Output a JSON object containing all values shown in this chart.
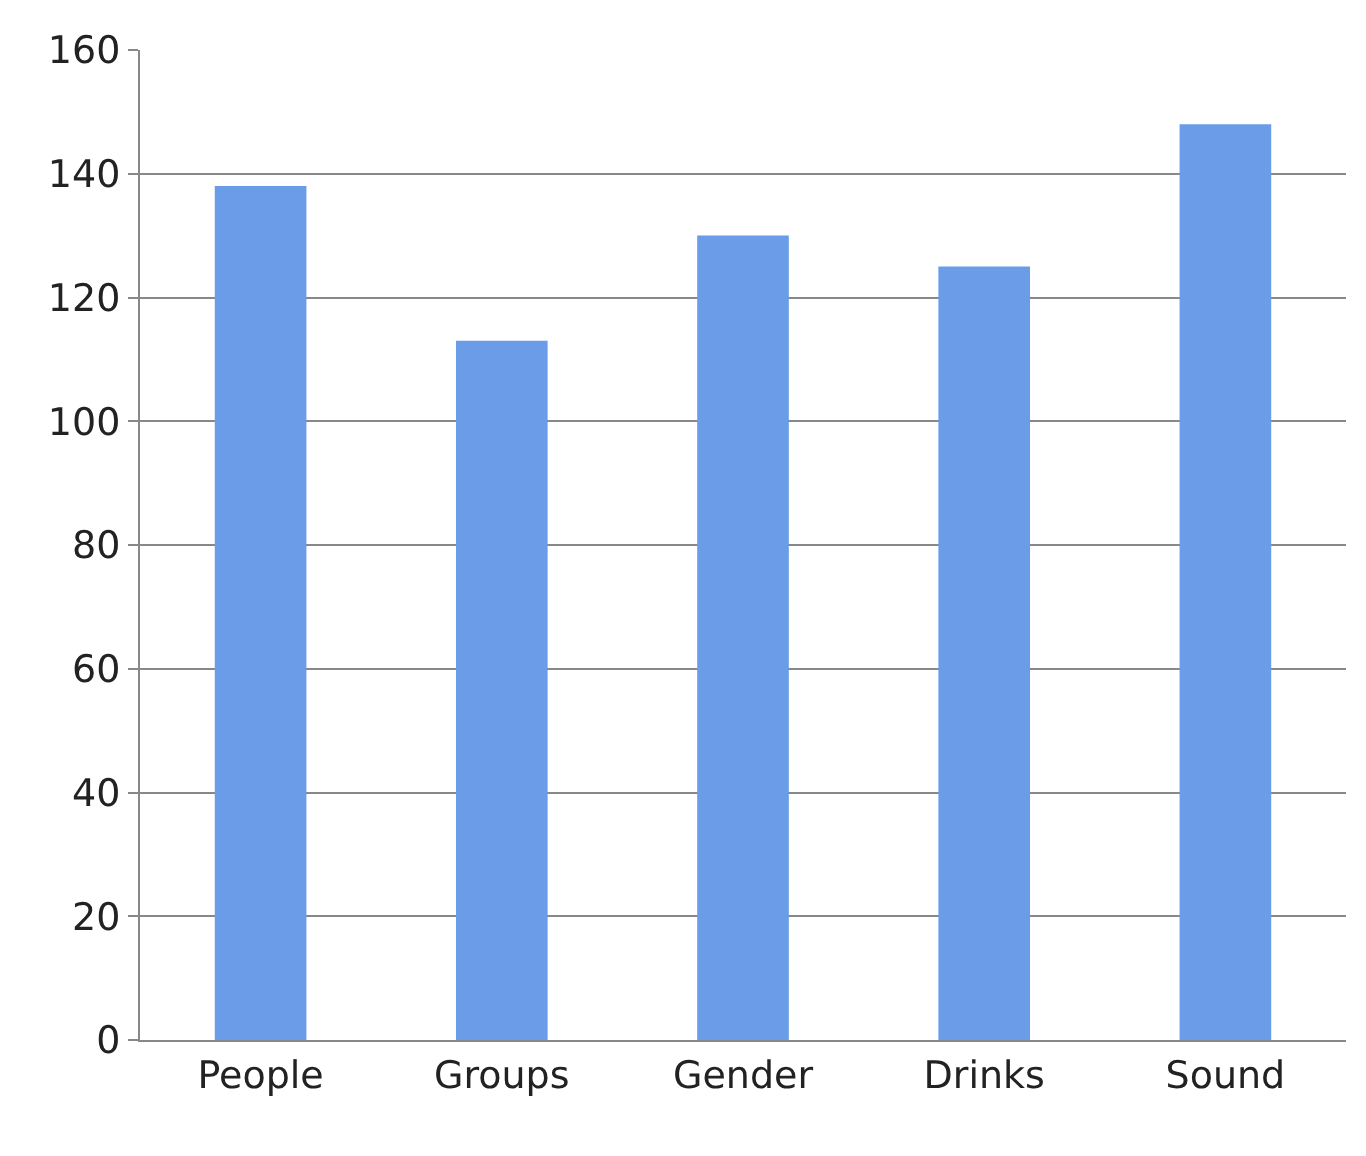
{
  "chart_data": {
    "type": "bar",
    "categories": [
      "People",
      "Groups",
      "Gender",
      "Drinks",
      "Sound"
    ],
    "values": [
      138,
      113,
      130,
      125,
      148
    ],
    "color": "#6a9ce8",
    "ylim": [
      0,
      160
    ],
    "yticks": [
      0,
      20,
      40,
      60,
      80,
      100,
      120,
      140,
      160
    ],
    "grid": "y",
    "legend": false
  }
}
